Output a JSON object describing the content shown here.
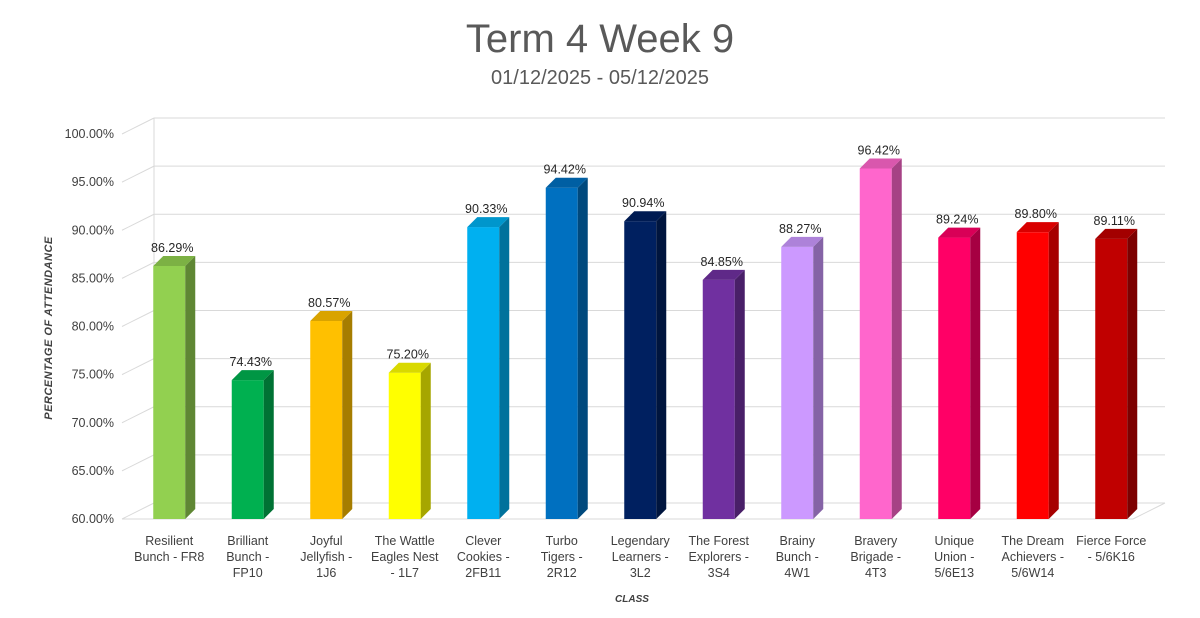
{
  "chart_data": {
    "type": "bar",
    "title": "Term 4 Week 9",
    "subtitle": "01/12/2025 - 05/12/2025",
    "xlabel": "CLASS",
    "ylabel": "PERCENTAGE OF ATTENDANCE",
    "ylim": [
      60,
      100
    ],
    "ytick_step": 5,
    "y_tick_labels": [
      "60.00%",
      "65.00%",
      "70.00%",
      "75.00%",
      "80.00%",
      "85.00%",
      "90.00%",
      "95.00%",
      "100.00%"
    ],
    "grid": true,
    "bar_style": "3d-column",
    "categories": [
      [
        "Resilient",
        "Bunch - FR8"
      ],
      [
        "Brilliant",
        "Bunch -",
        "FP10"
      ],
      [
        "Joyful",
        "Jellyfish -",
        "1J6"
      ],
      [
        "The Wattle",
        "Eagles Nest",
        "- 1L7"
      ],
      [
        "Clever",
        "Cookies -",
        "2FB11"
      ],
      [
        "Turbo",
        "Tigers -",
        "2R12"
      ],
      [
        "Legendary",
        "Learners -",
        "3L2"
      ],
      [
        "The Forest",
        "Explorers -",
        "3S4"
      ],
      [
        "Brainy",
        "Bunch -",
        "4W1"
      ],
      [
        "Bravery",
        "Brigade -",
        "4T3"
      ],
      [
        "Unique",
        "Union -",
        "5/6E13"
      ],
      [
        "The Dream",
        "Achievers -",
        "5/6W14"
      ],
      [
        "Fierce Force",
        "- 5/6K16"
      ]
    ],
    "values": [
      86.29,
      74.43,
      80.57,
      75.2,
      90.33,
      94.42,
      90.94,
      84.85,
      88.27,
      96.42,
      89.24,
      89.8,
      89.11
    ],
    "data_labels": [
      "86.29%",
      "74.43%",
      "80.57%",
      "75.20%",
      "90.33%",
      "94.42%",
      "90.94%",
      "84.85%",
      "88.27%",
      "96.42%",
      "89.24%",
      "89.80%",
      "89.11%"
    ],
    "colors": [
      "#92D050",
      "#00B050",
      "#FFC000",
      "#FFFF00",
      "#00B0F0",
      "#0070C0",
      "#002060",
      "#7030A0",
      "#CC99FF",
      "#FF66CC",
      "#FF0066",
      "#FF0000",
      "#C00000"
    ]
  }
}
